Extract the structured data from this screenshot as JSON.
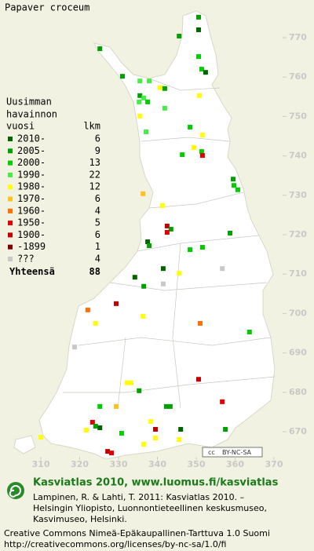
{
  "title": "Papaver croceum",
  "legend": {
    "heading": [
      "Uusimman",
      "havainnon"
    ],
    "col_heads": [
      "vuosi",
      "lkm"
    ],
    "rows": [
      {
        "label": "2010-",
        "count": 6,
        "color": "#006400"
      },
      {
        "label": "2005-",
        "count": 9,
        "color": "#00a000"
      },
      {
        "label": "2000-",
        "count": 13,
        "color": "#00cc00"
      },
      {
        "label": "1990-",
        "count": 22,
        "color": "#44ee44"
      },
      {
        "label": "1980-",
        "count": 12,
        "color": "#ffff00"
      },
      {
        "label": "1970-",
        "count": 6,
        "color": "#ffc020"
      },
      {
        "label": "1960-",
        "count": 4,
        "color": "#ff7000"
      },
      {
        "label": "1950-",
        "count": 5,
        "color": "#e00000"
      },
      {
        "label": "1900-",
        "count": 6,
        "color": "#c00000"
      },
      {
        "label": "-1899",
        "count": 1,
        "color": "#800000"
      },
      {
        "label": "???",
        "count": 4,
        "color": "#c8c8c8"
      }
    ],
    "total": {
      "label": "Yhteensä",
      "count": 88
    }
  },
  "axes": {
    "yticks": [
      770,
      760,
      750,
      740,
      730,
      720,
      710,
      700,
      690,
      680,
      670
    ],
    "xticks": [
      310,
      320,
      330,
      340,
      350,
      360,
      370
    ]
  },
  "points": [
    [
      350.6,
      775.2,
      1
    ],
    [
      350.6,
      772.0,
      0
    ],
    [
      345.6,
      770.4,
      1
    ],
    [
      325.2,
      767.2,
      1
    ],
    [
      350.6,
      765.2,
      2
    ],
    [
      351.4,
      762.0,
      2
    ],
    [
      352.4,
      761.2,
      0
    ],
    [
      331.0,
      760.2,
      1
    ],
    [
      335.5,
      759.0,
      3
    ],
    [
      337.9,
      759.0,
      3
    ],
    [
      340.7,
      757.3,
      4
    ],
    [
      341.9,
      757.1,
      1
    ],
    [
      350.8,
      755.3,
      4
    ],
    [
      335.5,
      755.3,
      1
    ],
    [
      336.5,
      754.7,
      3
    ],
    [
      335.3,
      753.7,
      3
    ],
    [
      337.5,
      753.7,
      2
    ],
    [
      341.9,
      752.1,
      3
    ],
    [
      335.5,
      750.1,
      4
    ],
    [
      348.4,
      747.3,
      2
    ],
    [
      337.1,
      746.1,
      3
    ],
    [
      351.6,
      745.3,
      4
    ],
    [
      346.4,
      740.3,
      2
    ],
    [
      351.4,
      741.1,
      2
    ],
    [
      351.6,
      740.1,
      7
    ],
    [
      349.4,
      742.1,
      4
    ],
    [
      359.5,
      734.1,
      1
    ],
    [
      359.7,
      732.5,
      2
    ],
    [
      360.7,
      731.4,
      2
    ],
    [
      336.3,
      730.4,
      5
    ],
    [
      341.3,
      727.4,
      4
    ],
    [
      342.5,
      722.2,
      8
    ],
    [
      343.5,
      721.4,
      1
    ],
    [
      342.5,
      720.6,
      7
    ],
    [
      358.7,
      720.4,
      1
    ],
    [
      337.5,
      718.2,
      0
    ],
    [
      337.9,
      717.2,
      1
    ],
    [
      348.4,
      716.2,
      2
    ],
    [
      351.6,
      716.8,
      2
    ],
    [
      341.5,
      711.4,
      0
    ],
    [
      345.6,
      710.2,
      4
    ],
    [
      334.2,
      709.2,
      0
    ],
    [
      336.5,
      706.9,
      1
    ],
    [
      341.5,
      707.5,
      10
    ],
    [
      356.7,
      711.4,
      10
    ],
    [
      322.1,
      700.9,
      6
    ],
    [
      329.4,
      702.5,
      8
    ],
    [
      324.1,
      697.5,
      4
    ],
    [
      336.3,
      699.3,
      4
    ],
    [
      318.7,
      691.5,
      10
    ],
    [
      351.0,
      697.5,
      6
    ],
    [
      363.7,
      695.3,
      2
    ],
    [
      350.6,
      683.3,
      8
    ],
    [
      332.2,
      682.4,
      4
    ],
    [
      333.2,
      682.4,
      4
    ],
    [
      335.3,
      680.4,
      1
    ],
    [
      329.4,
      676.4,
      5
    ],
    [
      325.2,
      676.4,
      2
    ],
    [
      342.3,
      676.4,
      1
    ],
    [
      343.3,
      676.4,
      1
    ],
    [
      356.7,
      677.6,
      7
    ],
    [
      323.3,
      672.4,
      7
    ],
    [
      324.1,
      671.4,
      1
    ],
    [
      325.2,
      671.0,
      0
    ],
    [
      321.7,
      670.4,
      4
    ],
    [
      338.3,
      672.6,
      4
    ],
    [
      339.5,
      670.6,
      8
    ],
    [
      330.8,
      669.6,
      2
    ],
    [
      346.0,
      670.6,
      0
    ],
    [
      357.5,
      670.6,
      1
    ],
    [
      345.6,
      668.0,
      4
    ],
    [
      339.5,
      668.4,
      4
    ],
    [
      336.5,
      666.8,
      4
    ],
    [
      327.2,
      665.0,
      8
    ],
    [
      328.2,
      664.6,
      7
    ],
    [
      310.0,
      668.6,
      4
    ]
  ],
  "badge": {
    "icon": "cc",
    "label": "BY-NC-SA"
  },
  "footer": {
    "site": "Kasviatlas 2010, www.luomus.fi/kasviatlas",
    "citation": [
      "Lampinen, R. & Lahti, T. 2011: Kasviatlas 2010. –",
      "Helsingin Yliopisto, Luonnontieteellinen keskusmuseo,",
      "Kasvimuseo, Helsinki."
    ],
    "license": [
      "Creative Commons Nimeä-Epäkaupallinen-Tarttuva 1.0 Suomi",
      "http://creativecommons.org/licenses/by-nc-sa/1.0/fi"
    ]
  }
}
